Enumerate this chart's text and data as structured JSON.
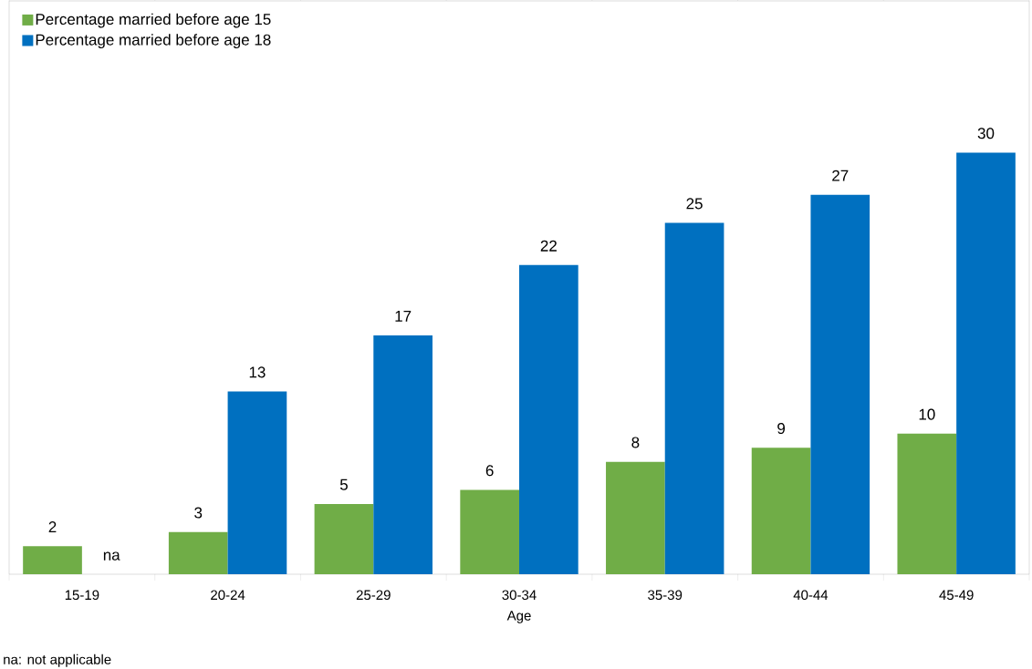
{
  "chart_data": {
    "type": "bar",
    "xlabel": "Age",
    "categories": [
      "15-19",
      "20-24",
      "25-29",
      "30-34",
      "35-39",
      "40-44",
      "45-49"
    ],
    "series": [
      {
        "name": "Percentage married before age 15",
        "color": "#70ad47",
        "values": [
          2,
          3,
          5,
          6,
          8,
          9,
          10
        ],
        "value_labels": [
          "2",
          "3",
          "5",
          "6",
          "8",
          "9",
          "10"
        ]
      },
      {
        "name": "Percentage married before age 18",
        "color": "#0070c0",
        "values": [
          null,
          13,
          17,
          22,
          25,
          27,
          30
        ],
        "value_labels": [
          "na",
          "13",
          "17",
          "22",
          "25",
          "27",
          "30"
        ]
      }
    ],
    "legend": "top left",
    "grid": false,
    "annotations": [
      "na: not applicable"
    ]
  }
}
